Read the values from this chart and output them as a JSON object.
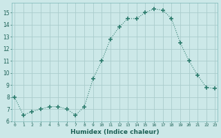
{
  "x": [
    0,
    1,
    2,
    3,
    4,
    5,
    6,
    7,
    8,
    9,
    10,
    11,
    12,
    13,
    14,
    15,
    16,
    17,
    18,
    19,
    20,
    21,
    22,
    23
  ],
  "y": [
    8.0,
    6.5,
    6.8,
    7.0,
    7.2,
    7.2,
    7.0,
    6.5,
    7.2,
    9.5,
    11.0,
    12.8,
    13.8,
    14.5,
    14.5,
    15.0,
    15.3,
    15.2,
    14.5,
    12.5,
    11.0,
    9.8,
    8.8,
    8.7
  ],
  "xlabel": "Humidex (Indice chaleur)",
  "ylim": [
    6,
    15.8
  ],
  "xlim": [
    -0.3,
    23.3
  ],
  "yticks": [
    6,
    7,
    8,
    9,
    10,
    11,
    12,
    13,
    14,
    15
  ],
  "xticks": [
    0,
    1,
    2,
    3,
    4,
    5,
    6,
    7,
    8,
    9,
    10,
    11,
    12,
    13,
    14,
    15,
    16,
    17,
    18,
    19,
    20,
    21,
    22,
    23
  ],
  "line_color": "#2e7d6e",
  "marker_color": "#2e7d6e",
  "bg_color": "#cce8e8",
  "grid_color": "#aacccc",
  "label_color": "#1a5f54",
  "spine_color": "#7ab8b8"
}
